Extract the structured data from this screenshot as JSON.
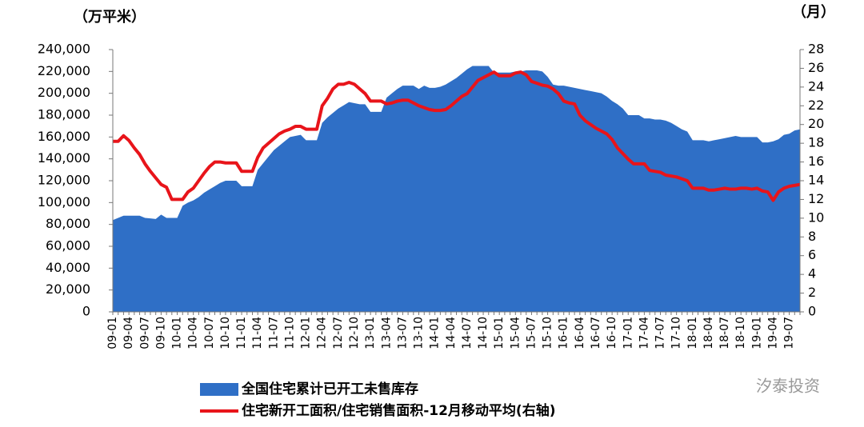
{
  "chart_data": {
    "type": "combo",
    "y_title": "（万平米）",
    "y2_title": "（月）",
    "watermark": "汐泰投资",
    "categories": [
      "09-01",
      null,
      null,
      "09-04",
      null,
      null,
      "09-07",
      null,
      null,
      "09-10",
      null,
      null,
      "10-01",
      null,
      null,
      "10-04",
      null,
      null,
      "10-07",
      null,
      null,
      "10-10",
      null,
      null,
      "11-01",
      null,
      null,
      "11-04",
      null,
      null,
      "11-07",
      null,
      null,
      "11-10",
      null,
      null,
      "12-01",
      null,
      null,
      "12-04",
      null,
      null,
      "12-07",
      null,
      null,
      "12-10",
      null,
      null,
      "13-01",
      null,
      null,
      "13-04",
      null,
      null,
      "13-07",
      null,
      null,
      "13-10",
      null,
      null,
      "14-01",
      null,
      null,
      "14-04",
      null,
      null,
      "14-07",
      null,
      null,
      "14-10",
      null,
      null,
      "15-01",
      null,
      null,
      "15-04",
      null,
      null,
      "15-07",
      null,
      null,
      "15-10",
      null,
      null,
      "16-01",
      null,
      null,
      "16-04",
      null,
      null,
      "16-07",
      null,
      null,
      "16-10",
      null,
      null,
      "17-01",
      null,
      null,
      "17-04",
      null,
      null,
      "17-07",
      null,
      null,
      "17-10",
      null,
      null,
      "18-01",
      null,
      null,
      "18-04",
      null,
      null,
      "18-07",
      null,
      null,
      "18-10",
      null,
      null,
      "19-01",
      null,
      null,
      "19-04",
      null,
      null,
      "19-07",
      null,
      null
    ],
    "series": [
      {
        "name": "全国住宅累计已开工未售库存",
        "type": "area",
        "color": "#2f6fc6",
        "values": [
          84000,
          86000,
          88000,
          88000,
          88000,
          88000,
          86000,
          85500,
          85000,
          89000,
          86000,
          86000,
          86000,
          97000,
          100000,
          102000,
          105000,
          109000,
          112000,
          115000,
          118000,
          120000,
          120000,
          120000,
          115000,
          115000,
          115000,
          130000,
          136000,
          142000,
          148000,
          152000,
          156000,
          160000,
          161000,
          162000,
          157000,
          157000,
          157000,
          173000,
          178000,
          182000,
          186000,
          189000,
          192000,
          191000,
          190000,
          190000,
          183000,
          183000,
          183000,
          196000,
          200000,
          204000,
          207000,
          207000,
          207000,
          204000,
          207000,
          205000,
          205000,
          206000,
          208000,
          211000,
          214000,
          218000,
          222000,
          225000,
          225000,
          225000,
          225000,
          219000,
          219000,
          219000,
          219000,
          220000,
          220000,
          221000,
          221000,
          221000,
          220000,
          215000,
          208000,
          207000,
          207000,
          206000,
          205000,
          204000,
          203000,
          202000,
          201000,
          200000,
          197000,
          193000,
          190000,
          186000,
          180000,
          180000,
          180000,
          177000,
          177000,
          176000,
          176000,
          175000,
          173000,
          170000,
          167000,
          165000,
          157000,
          157000,
          157000,
          156000,
          157000,
          158000,
          159000,
          160000,
          161000,
          160000,
          160000,
          160000,
          160000,
          155000,
          155000,
          156000,
          158000,
          162000,
          163000,
          166000,
          167000
        ]
      },
      {
        "name": "住宅新开工面积/住宅销售面积-12月移动平均(右轴)",
        "type": "line",
        "axis": "y2",
        "color": "#e8141a",
        "values": [
          18.2,
          18.2,
          18.8,
          18.3,
          17.5,
          16.8,
          15.8,
          15,
          14.3,
          13.6,
          13.3,
          12,
          12,
          12,
          12.8,
          13.2,
          14,
          14.8,
          15.5,
          16,
          16,
          15.9,
          15.9,
          15.9,
          15,
          15,
          15,
          16.5,
          17.5,
          18,
          18.5,
          19,
          19.3,
          19.5,
          19.8,
          19.8,
          19.5,
          19.5,
          19.5,
          22,
          22.8,
          23.8,
          24.3,
          24.3,
          24.5,
          24.3,
          23.8,
          23.3,
          22.5,
          22.5,
          22.5,
          22.2,
          22.3,
          22.5,
          22.6,
          22.6,
          22.3,
          22,
          21.8,
          21.6,
          21.5,
          21.5,
          21.6,
          22,
          22.5,
          23,
          23.3,
          24,
          24.7,
          25,
          25.3,
          25.6,
          25.2,
          25.2,
          25.2,
          25.5,
          25.6,
          25.3,
          24.6,
          24.4,
          24.2,
          24.1,
          23.8,
          23.3,
          22.5,
          22.3,
          22.2,
          21,
          20.4,
          20,
          19.6,
          19.3,
          19,
          18.4,
          17.5,
          16.9,
          16.3,
          15.8,
          15.8,
          15.8,
          15.1,
          15,
          14.9,
          14.6,
          14.5,
          14.4,
          14.2,
          14,
          13.2,
          13.2,
          13.2,
          13,
          13,
          13.1,
          13.2,
          13.1,
          13.1,
          13.2,
          13.2,
          13.1,
          13.2,
          12.9,
          12.8,
          11.9,
          12.8,
          13.2,
          13.4,
          13.5,
          13.6
        ]
      }
    ],
    "ylim": [
      0,
      240000
    ],
    "yticks": [
      0,
      {
        "value": 20000,
        "label": "20,000"
      },
      {
        "value": 40000,
        "label": "40,000"
      },
      {
        "value": 60000,
        "label": "60,000"
      },
      {
        "value": 80000,
        "label": "80,000"
      },
      {
        "value": 100000,
        "label": "100,000"
      },
      {
        "value": 120000,
        "label": "120,000"
      },
      {
        "value": 140000,
        "label": "140,000"
      },
      {
        "value": 160000,
        "label": "160,000"
      },
      {
        "value": 180000,
        "label": "180,000"
      },
      {
        "value": 200000,
        "label": "200,000"
      },
      {
        "value": 220000,
        "label": "220,000"
      },
      {
        "value": 240000,
        "label": "240,000"
      }
    ],
    "y2lim": [
      0,
      28
    ],
    "y2ticks": [
      0,
      2,
      4,
      6,
      8,
      10,
      12,
      14,
      16,
      18,
      20,
      22,
      24,
      26,
      28
    ],
    "grid": false
  }
}
